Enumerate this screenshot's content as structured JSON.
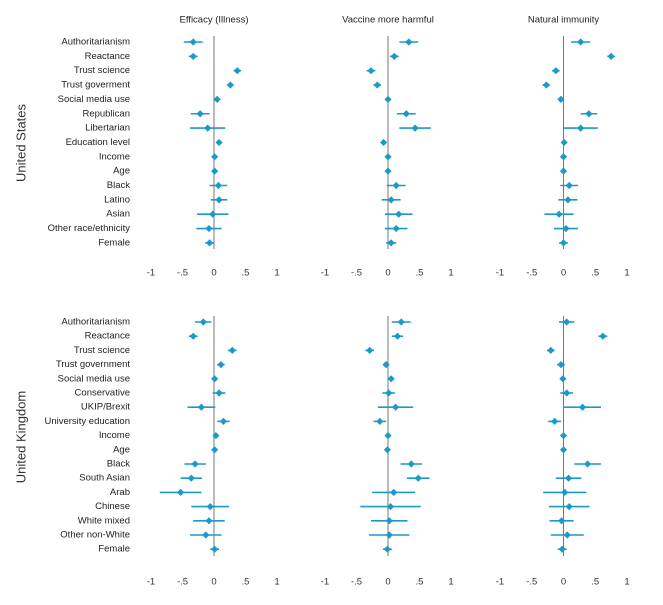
{
  "chart_data": {
    "type": "scatter",
    "style": {
      "point_color": "#1a9ac9",
      "axis_color": "#555555"
    },
    "columns": [
      "Efficacy (Illness)",
      "Vaccine more harmful",
      "Natural immunity"
    ],
    "xlim": [
      -1,
      1
    ],
    "x_ticks": [
      "-1",
      "-.5",
      "0",
      ".5",
      "1"
    ],
    "x_tick_values": [
      -1,
      -0.5,
      0,
      0.5,
      1
    ],
    "panels": [
      {
        "country": "United States",
        "labels": [
          "Authoritarianism",
          "Reactance",
          "Trust science",
          "Trust goverment",
          "Social media use",
          "Republican",
          "Libertarian",
          "Education level",
          "Income",
          "Age",
          "Black",
          "Latino",
          "Asian",
          "Other race/ethnicity",
          "Female"
        ],
        "series": [
          {
            "name": "Efficacy (Illness)",
            "estimate": [
              -0.33,
              -0.33,
              0.37,
              0.26,
              0.05,
              -0.22,
              -0.1,
              0.08,
              0.01,
              0.01,
              0.07,
              0.08,
              -0.02,
              -0.08,
              -0.07
            ],
            "ci_low": [
              -0.48,
              -0.4,
              0.31,
              0.21,
              0.02,
              -0.37,
              -0.38,
              0.05,
              -0.01,
              -0.01,
              -0.07,
              -0.05,
              -0.27,
              -0.28,
              -0.14
            ],
            "ci_high": [
              -0.18,
              -0.26,
              0.43,
              0.31,
              0.08,
              -0.07,
              0.18,
              0.11,
              0.03,
              0.03,
              0.21,
              0.21,
              0.23,
              0.12,
              0.0
            ]
          },
          {
            "name": "Vaccine more harmful",
            "estimate": [
              0.33,
              0.1,
              -0.27,
              -0.17,
              0.0,
              0.29,
              0.43,
              -0.07,
              0.0,
              0.0,
              0.13,
              0.05,
              0.17,
              0.13,
              0.05
            ],
            "ci_low": [
              0.18,
              0.03,
              -0.34,
              -0.23,
              -0.02,
              0.14,
              0.18,
              -0.1,
              -0.02,
              -0.02,
              -0.02,
              -0.1,
              -0.05,
              -0.05,
              -0.03
            ],
            "ci_high": [
              0.48,
              0.17,
              -0.2,
              -0.11,
              0.02,
              0.44,
              0.68,
              -0.04,
              0.02,
              0.02,
              0.28,
              0.2,
              0.39,
              0.31,
              0.13
            ]
          },
          {
            "name": "Natural immunity",
            "estimate": [
              0.27,
              0.75,
              -0.12,
              -0.27,
              -0.04,
              0.4,
              0.27,
              0.01,
              0.0,
              0.0,
              0.09,
              0.07,
              -0.07,
              0.04,
              0.0
            ],
            "ci_low": [
              0.12,
              0.69,
              -0.18,
              -0.33,
              -0.07,
              0.27,
              0.0,
              -0.02,
              -0.02,
              -0.02,
              -0.05,
              -0.08,
              -0.3,
              -0.15,
              -0.07
            ],
            "ci_high": [
              0.42,
              0.81,
              -0.06,
              -0.21,
              -0.01,
              0.53,
              0.54,
              0.04,
              0.02,
              0.02,
              0.23,
              0.22,
              0.16,
              0.23,
              0.07
            ]
          }
        ]
      },
      {
        "country": "United Kingdom",
        "labels": [
          "Authoritarianism",
          "Reactance",
          "Trust science",
          "Trust government",
          "Social media use",
          "Conservative",
          "UKIP/Brexit",
          "University education",
          "Income",
          "Age",
          "Black",
          "South Asian",
          "Arab",
          "Chinese",
          "White mixed",
          "Other non-White",
          "Female"
        ],
        "series": [
          {
            "name": "Efficacy (Illness)",
            "estimate": [
              -0.17,
              -0.33,
              0.29,
              0.11,
              0.01,
              0.08,
              -0.2,
              0.15,
              0.03,
              0.01,
              -0.3,
              -0.36,
              -0.53,
              -0.06,
              -0.08,
              -0.13,
              0.01
            ],
            "ci_low": [
              -0.3,
              -0.4,
              0.22,
              0.05,
              -0.02,
              -0.02,
              -0.42,
              0.05,
              0.0,
              -0.02,
              -0.47,
              -0.53,
              -0.86,
              -0.36,
              -0.33,
              -0.38,
              -0.06
            ],
            "ci_high": [
              -0.04,
              -0.26,
              0.36,
              0.17,
              0.04,
              0.18,
              0.02,
              0.25,
              0.06,
              0.04,
              -0.13,
              -0.19,
              -0.2,
              0.24,
              0.17,
              0.12,
              0.08
            ]
          },
          {
            "name": "Vaccine more harmful",
            "estimate": [
              0.21,
              0.15,
              -0.29,
              -0.03,
              0.05,
              0.01,
              0.12,
              -0.13,
              0.0,
              -0.01,
              0.37,
              0.48,
              0.09,
              0.04,
              0.02,
              0.02,
              -0.01
            ],
            "ci_low": [
              0.06,
              0.06,
              -0.36,
              -0.08,
              0.01,
              -0.09,
              -0.16,
              -0.23,
              -0.02,
              -0.03,
              0.2,
              0.3,
              -0.25,
              -0.44,
              -0.27,
              -0.3,
              -0.08
            ],
            "ci_high": [
              0.36,
              0.24,
              -0.22,
              0.02,
              0.09,
              0.11,
              0.4,
              -0.03,
              0.02,
              0.01,
              0.54,
              0.66,
              0.43,
              0.52,
              0.31,
              0.34,
              0.06
            ]
          },
          {
            "name": "Natural immunity",
            "estimate": [
              0.05,
              0.62,
              -0.2,
              -0.04,
              -0.01,
              0.05,
              0.3,
              -0.14,
              0.0,
              0.0,
              0.38,
              0.08,
              0.02,
              0.09,
              -0.03,
              0.06,
              -0.02
            ],
            "ci_low": [
              -0.07,
              0.55,
              -0.26,
              -0.1,
              -0.04,
              -0.05,
              0.01,
              -0.24,
              -0.02,
              -0.02,
              0.17,
              -0.12,
              -0.32,
              -0.23,
              -0.22,
              -0.2,
              -0.09
            ],
            "ci_high": [
              0.17,
              0.69,
              -0.14,
              0.02,
              0.02,
              0.15,
              0.59,
              -0.04,
              0.02,
              0.02,
              0.59,
              0.28,
              0.36,
              0.41,
              0.16,
              0.32,
              0.05
            ]
          }
        ]
      }
    ]
  }
}
